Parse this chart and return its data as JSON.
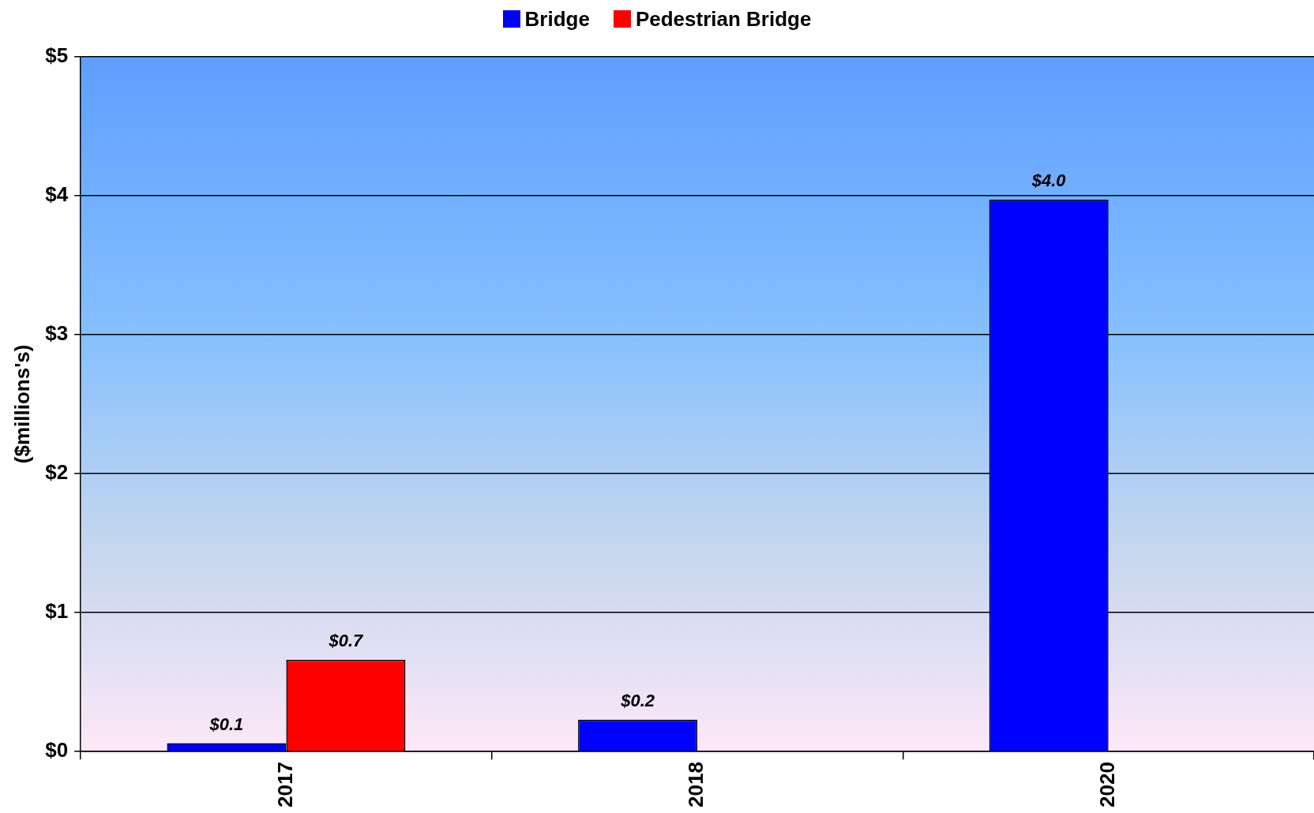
{
  "chart_data": {
    "type": "bar",
    "ylabel": "($millions's)",
    "categories": [
      "2017",
      "2018",
      "2020"
    ],
    "series": [
      {
        "name": "Bridge",
        "color": "#0000ff",
        "values": [
          0.06,
          0.23,
          3.97
        ],
        "value_labels": [
          "$0.1",
          "$0.2",
          "$4.0"
        ]
      },
      {
        "name": "Pedestrian Bridge",
        "color": "#ff0000",
        "values": [
          0.66,
          null,
          null
        ],
        "value_labels": [
          "$0.7",
          null,
          null
        ]
      }
    ],
    "ylim": [
      0,
      5
    ],
    "yticks": [
      {
        "value": 0,
        "label": "$0"
      },
      {
        "value": 1,
        "label": "$1"
      },
      {
        "value": 2,
        "label": "$2"
      },
      {
        "value": 3,
        "label": "$3"
      },
      {
        "value": 4,
        "label": "$4"
      },
      {
        "value": 5,
        "label": "$5"
      }
    ],
    "grid": "y",
    "legend": "top"
  }
}
